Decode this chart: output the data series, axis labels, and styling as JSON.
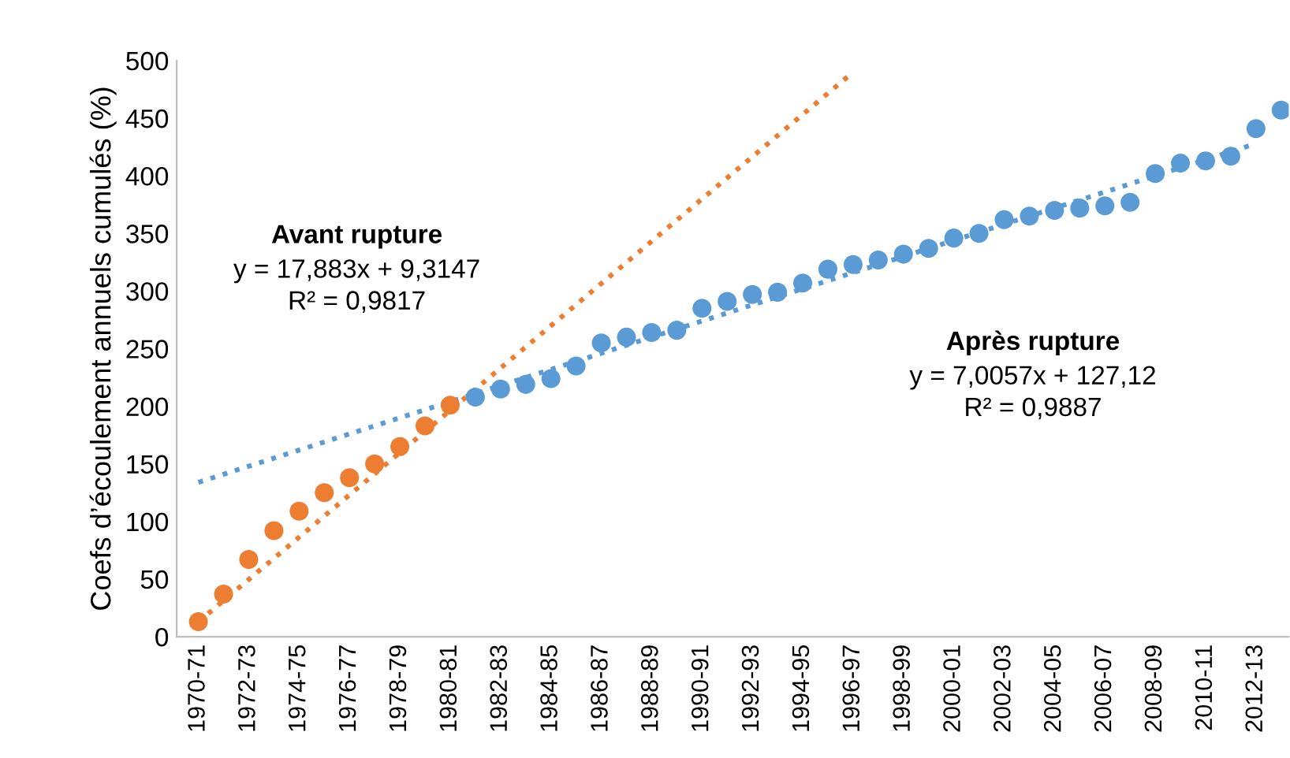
{
  "chart_data": {
    "type": "scatter",
    "ylabel": "Coefs d’écoulement annuels cumulés (%)",
    "categories": [
      "1970-71",
      null,
      "1972-73",
      null,
      "1974-75",
      null,
      "1976-77",
      null,
      "1978-79",
      null,
      "1980-81",
      null,
      "1982-83",
      null,
      "1984-85",
      null,
      "1986-87",
      null,
      "1988-89",
      null,
      "1990-91",
      null,
      "1992-93",
      null,
      "1994-95",
      null,
      "1996-97",
      null,
      "1998-99",
      null,
      "2000-01",
      null,
      "2002-03",
      null,
      "2004-05",
      null,
      "2006-07",
      null,
      "2008-09",
      null,
      "2010-11",
      null,
      "2012-13",
      null
    ],
    "series": [
      {
        "color": "#ed7d31",
        "values": [
          13,
          37,
          67,
          92,
          109,
          125,
          138,
          150,
          165,
          183,
          201,
          null,
          null,
          null,
          null,
          null,
          null,
          null,
          null,
          null,
          null,
          null,
          null,
          null,
          null,
          null,
          null,
          null,
          null,
          null,
          null,
          null,
          null,
          null,
          null,
          null,
          null,
          null,
          null,
          null,
          null,
          null,
          null,
          null
        ]
      },
      {
        "color": "#5b9bd5",
        "values": [
          null,
          null,
          null,
          null,
          null,
          null,
          null,
          null,
          null,
          null,
          null,
          208,
          215,
          219,
          224,
          235,
          255,
          260,
          264,
          266,
          285,
          291,
          297,
          299,
          307,
          319,
          323,
          327,
          332,
          337,
          346,
          350,
          362,
          365,
          370,
          372,
          374,
          377,
          402,
          411,
          413,
          417,
          441,
          457
        ]
      },
      {
        "type": "line",
        "color": "#ed7d31",
        "line_style": "dotted",
        "marker": "none",
        "x": [
          "1970-71",
          "1996-97"
        ],
        "values": [
          13,
          490
        ]
      },
      {
        "type": "line",
        "color": "#5b9bd5",
        "line_style": "dotted",
        "marker": "none",
        "x": [
          "1970-71",
          "2012-13"
        ],
        "values": [
          134,
          428
        ]
      }
    ],
    "marker": "circle",
    "ylim": [
      0,
      500
    ],
    "yticks": [
      0,
      50,
      100,
      150,
      200,
      250,
      300,
      350,
      400,
      450,
      500
    ],
    "grid": false,
    "legend": false,
    "annotations": [
      "Avant rupture",
      "y = 17,883x + 9,3147",
      "R² = 0,9817",
      "Après rupture",
      "y = 7,0057x + 127,12",
      "R² = 0,9887"
    ]
  }
}
